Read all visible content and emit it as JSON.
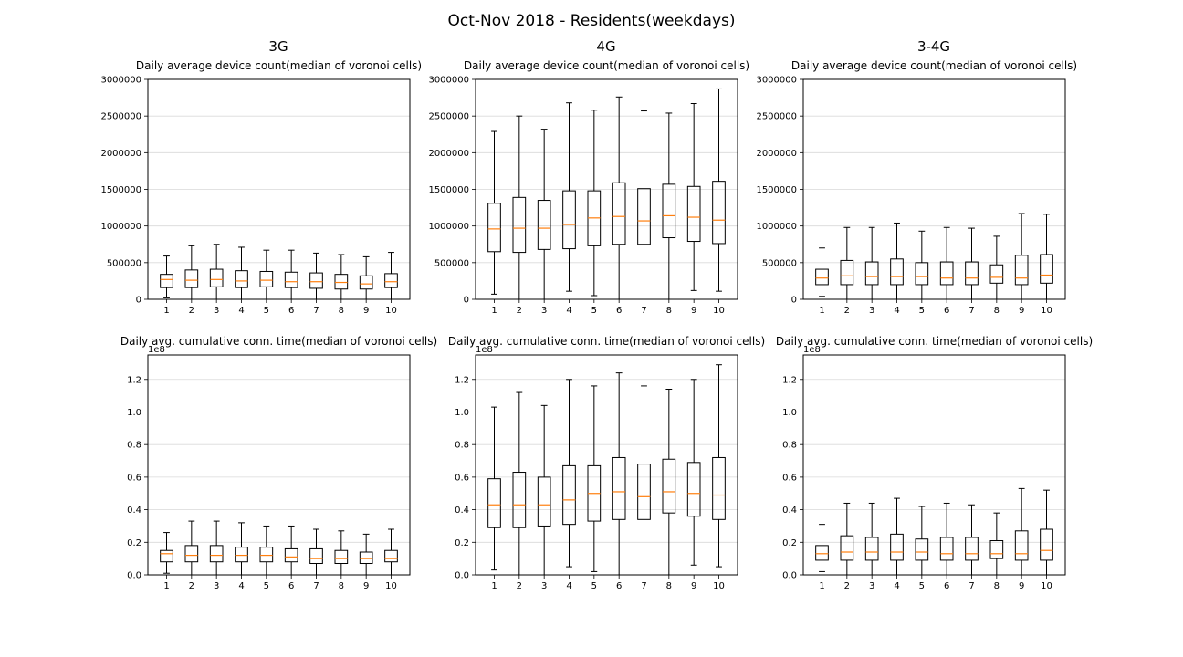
{
  "figure": {
    "title": "Oct-Nov 2018 - Residents(weekdays)",
    "column_titles": [
      "3G",
      "4G",
      "3-4G"
    ]
  },
  "colors": {
    "box": "#000000",
    "median": "#ff7f0e",
    "grid": "#d9d9d9"
  },
  "chart_data": [
    {
      "type": "box",
      "id": "3g-device",
      "title": "Daily average device count(median of voronoi cells)",
      "categories": [
        "1",
        "2",
        "3",
        "4",
        "5",
        "6",
        "7",
        "8",
        "9",
        "10"
      ],
      "ylim": [
        0,
        3000000
      ],
      "yticks": [
        0,
        500000,
        1000000,
        1500000,
        2000000,
        2500000,
        3000000
      ],
      "ytick_labels": [
        "0",
        "500000",
        "1000000",
        "1500000",
        "2000000",
        "2500000",
        "3000000"
      ],
      "grid": "y",
      "scale_label": "",
      "boxes": [
        {
          "whislo": 20000,
          "q1": 160000,
          "med": 270000,
          "q3": 340000,
          "whishi": 590000
        },
        {
          "whislo": 0,
          "q1": 160000,
          "med": 260000,
          "q3": 400000,
          "whishi": 730000
        },
        {
          "whislo": 0,
          "q1": 170000,
          "med": 270000,
          "q3": 410000,
          "whishi": 750000
        },
        {
          "whislo": 0,
          "q1": 160000,
          "med": 250000,
          "q3": 390000,
          "whishi": 710000
        },
        {
          "whislo": 0,
          "q1": 170000,
          "med": 260000,
          "q3": 380000,
          "whishi": 670000
        },
        {
          "whislo": 0,
          "q1": 160000,
          "med": 240000,
          "q3": 370000,
          "whishi": 670000
        },
        {
          "whislo": 0,
          "q1": 150000,
          "med": 240000,
          "q3": 360000,
          "whishi": 630000
        },
        {
          "whislo": 0,
          "q1": 140000,
          "med": 230000,
          "q3": 340000,
          "whishi": 610000
        },
        {
          "whislo": 0,
          "q1": 140000,
          "med": 210000,
          "q3": 320000,
          "whishi": 580000
        },
        {
          "whislo": 0,
          "q1": 160000,
          "med": 240000,
          "q3": 350000,
          "whishi": 640000
        }
      ]
    },
    {
      "type": "box",
      "id": "4g-device",
      "title": "Daily average device count(median of voronoi cells)",
      "categories": [
        "1",
        "2",
        "3",
        "4",
        "5",
        "6",
        "7",
        "8",
        "9",
        "10"
      ],
      "ylim": [
        0,
        3000000
      ],
      "yticks": [
        0,
        500000,
        1000000,
        1500000,
        2000000,
        2500000,
        3000000
      ],
      "ytick_labels": [
        "0",
        "500000",
        "1000000",
        "1500000",
        "2000000",
        "2500000",
        "3000000"
      ],
      "grid": "y",
      "scale_label": "",
      "boxes": [
        {
          "whislo": 70000,
          "q1": 650000,
          "med": 960000,
          "q3": 1310000,
          "whishi": 2290000
        },
        {
          "whislo": 0,
          "q1": 640000,
          "med": 970000,
          "q3": 1390000,
          "whishi": 2500000
        },
        {
          "whislo": 0,
          "q1": 680000,
          "med": 970000,
          "q3": 1350000,
          "whishi": 2320000
        },
        {
          "whislo": 110000,
          "q1": 690000,
          "med": 1020000,
          "q3": 1480000,
          "whishi": 2680000
        },
        {
          "whislo": 50000,
          "q1": 730000,
          "med": 1110000,
          "q3": 1480000,
          "whishi": 2580000
        },
        {
          "whislo": 0,
          "q1": 750000,
          "med": 1130000,
          "q3": 1590000,
          "whishi": 2760000
        },
        {
          "whislo": 0,
          "q1": 750000,
          "med": 1070000,
          "q3": 1510000,
          "whishi": 2570000
        },
        {
          "whislo": 0,
          "q1": 840000,
          "med": 1140000,
          "q3": 1570000,
          "whishi": 2540000
        },
        {
          "whislo": 120000,
          "q1": 790000,
          "med": 1120000,
          "q3": 1540000,
          "whishi": 2670000
        },
        {
          "whislo": 110000,
          "q1": 760000,
          "med": 1080000,
          "q3": 1610000,
          "whishi": 2870000
        }
      ]
    },
    {
      "type": "box",
      "id": "34g-device",
      "title": "Daily average device count(median of voronoi cells)",
      "categories": [
        "1",
        "2",
        "3",
        "4",
        "5",
        "6",
        "7",
        "8",
        "9",
        "10"
      ],
      "ylim": [
        0,
        3000000
      ],
      "yticks": [
        0,
        500000,
        1000000,
        1500000,
        2000000,
        2500000,
        3000000
      ],
      "ytick_labels": [
        "0",
        "500000",
        "1000000",
        "1500000",
        "2000000",
        "2500000",
        "3000000"
      ],
      "grid": "y",
      "scale_label": "",
      "boxes": [
        {
          "whislo": 40000,
          "q1": 200000,
          "med": 290000,
          "q3": 410000,
          "whishi": 700000
        },
        {
          "whislo": 0,
          "q1": 200000,
          "med": 320000,
          "q3": 530000,
          "whishi": 980000
        },
        {
          "whislo": 0,
          "q1": 200000,
          "med": 310000,
          "q3": 510000,
          "whishi": 980000
        },
        {
          "whislo": 0,
          "q1": 200000,
          "med": 310000,
          "q3": 550000,
          "whishi": 1040000
        },
        {
          "whislo": 0,
          "q1": 200000,
          "med": 310000,
          "q3": 500000,
          "whishi": 930000
        },
        {
          "whislo": 0,
          "q1": 200000,
          "med": 290000,
          "q3": 510000,
          "whishi": 980000
        },
        {
          "whislo": 0,
          "q1": 200000,
          "med": 290000,
          "q3": 510000,
          "whishi": 970000
        },
        {
          "whislo": 0,
          "q1": 220000,
          "med": 300000,
          "q3": 470000,
          "whishi": 860000
        },
        {
          "whislo": 0,
          "q1": 200000,
          "med": 290000,
          "q3": 600000,
          "whishi": 1170000
        },
        {
          "whislo": 0,
          "q1": 220000,
          "med": 330000,
          "q3": 610000,
          "whishi": 1160000
        }
      ]
    },
    {
      "type": "box",
      "id": "3g-conn",
      "title": "Daily avg. cumulative conn. time(median of voronoi cells)",
      "categories": [
        "1",
        "2",
        "3",
        "4",
        "5",
        "6",
        "7",
        "8",
        "9",
        "10"
      ],
      "ylim": [
        0,
        1.35
      ],
      "yticks": [
        0.0,
        0.2,
        0.4,
        0.6,
        0.8,
        1.0,
        1.2
      ],
      "ytick_labels": [
        "0.0",
        "0.2",
        "0.4",
        "0.6",
        "0.8",
        "1.0",
        "1.2"
      ],
      "grid": "y",
      "scale_label": "1e8",
      "boxes": [
        {
          "whislo": 0.01,
          "q1": 0.08,
          "med": 0.13,
          "q3": 0.15,
          "whishi": 0.26
        },
        {
          "whislo": 0,
          "q1": 0.08,
          "med": 0.12,
          "q3": 0.18,
          "whishi": 0.33
        },
        {
          "whislo": 0,
          "q1": 0.08,
          "med": 0.12,
          "q3": 0.18,
          "whishi": 0.33
        },
        {
          "whislo": 0,
          "q1": 0.08,
          "med": 0.12,
          "q3": 0.17,
          "whishi": 0.32
        },
        {
          "whislo": 0,
          "q1": 0.08,
          "med": 0.12,
          "q3": 0.17,
          "whishi": 0.3
        },
        {
          "whislo": 0,
          "q1": 0.08,
          "med": 0.11,
          "q3": 0.16,
          "whishi": 0.3
        },
        {
          "whislo": 0,
          "q1": 0.07,
          "med": 0.1,
          "q3": 0.16,
          "whishi": 0.28
        },
        {
          "whislo": 0,
          "q1": 0.07,
          "med": 0.1,
          "q3": 0.15,
          "whishi": 0.27
        },
        {
          "whislo": 0,
          "q1": 0.07,
          "med": 0.1,
          "q3": 0.14,
          "whishi": 0.25
        },
        {
          "whislo": 0,
          "q1": 0.08,
          "med": 0.1,
          "q3": 0.15,
          "whishi": 0.28
        }
      ]
    },
    {
      "type": "box",
      "id": "4g-conn",
      "title": "Daily avg. cumulative conn. time(median of voronoi cells)",
      "categories": [
        "1",
        "2",
        "3",
        "4",
        "5",
        "6",
        "7",
        "8",
        "9",
        "10"
      ],
      "ylim": [
        0,
        1.35
      ],
      "yticks": [
        0.0,
        0.2,
        0.4,
        0.6,
        0.8,
        1.0,
        1.2
      ],
      "ytick_labels": [
        "0.0",
        "0.2",
        "0.4",
        "0.6",
        "0.8",
        "1.0",
        "1.2"
      ],
      "grid": "y",
      "scale_label": "1e8",
      "boxes": [
        {
          "whislo": 0.03,
          "q1": 0.29,
          "med": 0.43,
          "q3": 0.59,
          "whishi": 1.03
        },
        {
          "whislo": 0,
          "q1": 0.29,
          "med": 0.43,
          "q3": 0.63,
          "whishi": 1.12
        },
        {
          "whislo": 0,
          "q1": 0.3,
          "med": 0.43,
          "q3": 0.6,
          "whishi": 1.04
        },
        {
          "whislo": 0.05,
          "q1": 0.31,
          "med": 0.46,
          "q3": 0.67,
          "whishi": 1.2
        },
        {
          "whislo": 0.02,
          "q1": 0.33,
          "med": 0.5,
          "q3": 0.67,
          "whishi": 1.16
        },
        {
          "whislo": 0,
          "q1": 0.34,
          "med": 0.51,
          "q3": 0.72,
          "whishi": 1.24
        },
        {
          "whislo": 0,
          "q1": 0.34,
          "med": 0.48,
          "q3": 0.68,
          "whishi": 1.16
        },
        {
          "whislo": 0,
          "q1": 0.38,
          "med": 0.51,
          "q3": 0.71,
          "whishi": 1.14
        },
        {
          "whislo": 0.06,
          "q1": 0.36,
          "med": 0.5,
          "q3": 0.69,
          "whishi": 1.2
        },
        {
          "whislo": 0.05,
          "q1": 0.34,
          "med": 0.49,
          "q3": 0.72,
          "whishi": 1.29
        }
      ]
    },
    {
      "type": "box",
      "id": "34g-conn",
      "title": "Daily avg. cumulative conn. time(median of voronoi cells)",
      "categories": [
        "1",
        "2",
        "3",
        "4",
        "5",
        "6",
        "7",
        "8",
        "9",
        "10"
      ],
      "ylim": [
        0,
        1.35
      ],
      "yticks": [
        0.0,
        0.2,
        0.4,
        0.6,
        0.8,
        1.0,
        1.2
      ],
      "ytick_labels": [
        "0.0",
        "0.2",
        "0.4",
        "0.6",
        "0.8",
        "1.0",
        "1.2"
      ],
      "grid": "y",
      "scale_label": "1e8",
      "boxes": [
        {
          "whislo": 0.02,
          "q1": 0.09,
          "med": 0.13,
          "q3": 0.18,
          "whishi": 0.31
        },
        {
          "whislo": 0,
          "q1": 0.09,
          "med": 0.14,
          "q3": 0.24,
          "whishi": 0.44
        },
        {
          "whislo": 0,
          "q1": 0.09,
          "med": 0.14,
          "q3": 0.23,
          "whishi": 0.44
        },
        {
          "whislo": 0,
          "q1": 0.09,
          "med": 0.14,
          "q3": 0.25,
          "whishi": 0.47
        },
        {
          "whislo": 0,
          "q1": 0.09,
          "med": 0.14,
          "q3": 0.22,
          "whishi": 0.42
        },
        {
          "whislo": 0,
          "q1": 0.09,
          "med": 0.13,
          "q3": 0.23,
          "whishi": 0.44
        },
        {
          "whislo": 0,
          "q1": 0.09,
          "med": 0.13,
          "q3": 0.23,
          "whishi": 0.43
        },
        {
          "whislo": 0,
          "q1": 0.1,
          "med": 0.13,
          "q3": 0.21,
          "whishi": 0.38
        },
        {
          "whislo": 0,
          "q1": 0.09,
          "med": 0.13,
          "q3": 0.27,
          "whishi": 0.53
        },
        {
          "whislo": 0,
          "q1": 0.09,
          "med": 0.15,
          "q3": 0.28,
          "whishi": 0.52
        }
      ]
    }
  ]
}
